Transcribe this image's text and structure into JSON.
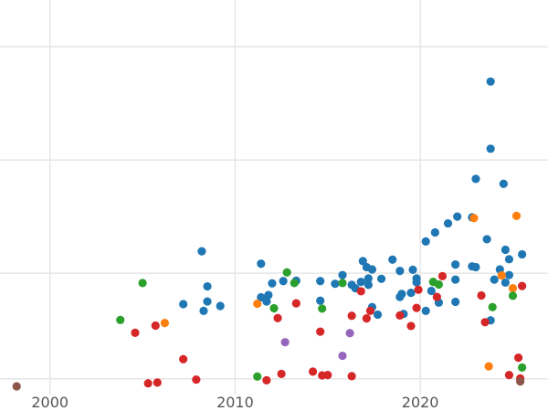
{
  "chart_data": {
    "type": "scatter",
    "title": "",
    "xlabel": "",
    "ylabel": "",
    "xlim": [
      1997.3,
      2026.9
    ],
    "ylim": [
      0,
      100
    ],
    "x_ticks": [
      2000,
      2010,
      2020
    ],
    "x_tick_labels": [
      "2000",
      "2010",
      "2020"
    ],
    "y_gridlines": [
      2,
      30,
      60,
      90
    ],
    "grid": true,
    "legend": "none",
    "series": [
      {
        "color": "#1f77b4",
        "points": [
          [
            2007.2,
            21.8
          ],
          [
            2008.2,
            35.8
          ],
          [
            2008.5,
            26.5
          ],
          [
            2008.3,
            20.0
          ],
          [
            2008.5,
            22.5
          ],
          [
            2009.2,
            21.3
          ],
          [
            2011.4,
            32.5
          ],
          [
            2011.4,
            23.6
          ],
          [
            2011.7,
            22.5
          ],
          [
            2011.8,
            24.2
          ],
          [
            2012.0,
            27.3
          ],
          [
            2012.6,
            27.9
          ],
          [
            2013.3,
            28.0
          ],
          [
            2014.6,
            27.9
          ],
          [
            2014.6,
            22.7
          ],
          [
            2015.4,
            27.2
          ],
          [
            2015.8,
            29.5
          ],
          [
            2016.3,
            26.9
          ],
          [
            2016.5,
            26.0
          ],
          [
            2016.8,
            27.7
          ],
          [
            2016.9,
            33.2
          ],
          [
            2017.1,
            31.6
          ],
          [
            2017.2,
            26.9
          ],
          [
            2017.2,
            28.6
          ],
          [
            2017.4,
            31.0
          ],
          [
            2017.4,
            21.0
          ],
          [
            2017.7,
            19.0
          ],
          [
            2017.9,
            28.5
          ],
          [
            2018.5,
            33.6
          ],
          [
            2018.9,
            30.6
          ],
          [
            2018.9,
            23.7
          ],
          [
            2019.0,
            24.5
          ],
          [
            2019.1,
            19.2
          ],
          [
            2019.5,
            24.8
          ],
          [
            2019.6,
            30.9
          ],
          [
            2019.8,
            28.6
          ],
          [
            2019.8,
            27.6
          ],
          [
            2020.3,
            38.4
          ],
          [
            2020.3,
            20.0
          ],
          [
            2020.6,
            25.3
          ],
          [
            2020.8,
            40.8
          ],
          [
            2021.0,
            22.2
          ],
          [
            2021.5,
            43.2
          ],
          [
            2021.9,
            32.3
          ],
          [
            2021.9,
            28.3
          ],
          [
            2021.9,
            22.4
          ],
          [
            2022.0,
            45.0
          ],
          [
            2022.8,
            31.8
          ],
          [
            2022.8,
            44.8
          ],
          [
            2023.0,
            31.6
          ],
          [
            2023.0,
            55.0
          ],
          [
            2023.6,
            39.0
          ],
          [
            2023.8,
            80.8
          ],
          [
            2023.8,
            63.0
          ],
          [
            2023.8,
            17.5
          ],
          [
            2024.0,
            28.3
          ],
          [
            2024.3,
            31.0
          ],
          [
            2024.5,
            53.7
          ],
          [
            2024.6,
            27.5
          ],
          [
            2024.6,
            36.2
          ],
          [
            2024.8,
            29.5
          ],
          [
            2024.8,
            33.7
          ],
          [
            2025.5,
            35.0
          ]
        ]
      },
      {
        "color": "#ff7f0e",
        "points": [
          [
            2006.2,
            16.8
          ],
          [
            2011.2,
            21.9
          ],
          [
            2022.9,
            44.6
          ],
          [
            2023.7,
            5.3
          ],
          [
            2024.4,
            29.4
          ],
          [
            2025.0,
            26.0
          ],
          [
            2025.2,
            45.2
          ]
        ]
      },
      {
        "color": "#2ca02c",
        "points": [
          [
            2003.8,
            17.6
          ],
          [
            2005.0,
            27.4
          ],
          [
            2011.2,
            2.6
          ],
          [
            2012.1,
            20.7
          ],
          [
            2012.8,
            30.2
          ],
          [
            2013.2,
            27.4
          ],
          [
            2014.7,
            20.6
          ],
          [
            2015.8,
            27.4
          ],
          [
            2020.7,
            27.7
          ],
          [
            2021.0,
            27.0
          ],
          [
            2023.9,
            21.0
          ],
          [
            2025.0,
            24.0
          ],
          [
            2025.5,
            5.0
          ]
        ]
      },
      {
        "color": "#d62728",
        "points": [
          [
            2004.6,
            14.2
          ],
          [
            2005.3,
            0.8
          ],
          [
            2005.7,
            16.1
          ],
          [
            2005.8,
            1.0
          ],
          [
            2007.2,
            7.2
          ],
          [
            2007.9,
            1.8
          ],
          [
            2011.7,
            1.6
          ],
          [
            2012.3,
            18.1
          ],
          [
            2012.5,
            3.3
          ],
          [
            2013.3,
            22.0
          ],
          [
            2014.2,
            3.9
          ],
          [
            2014.6,
            14.5
          ],
          [
            2014.7,
            2.9
          ],
          [
            2015.0,
            3.0
          ],
          [
            2016.3,
            18.7
          ],
          [
            2016.3,
            2.7
          ],
          [
            2016.8,
            25.2
          ],
          [
            2017.1,
            18.0
          ],
          [
            2017.3,
            20.0
          ],
          [
            2018.9,
            18.8
          ],
          [
            2019.5,
            16.0
          ],
          [
            2019.8,
            20.8
          ],
          [
            2019.9,
            25.6
          ],
          [
            2020.9,
            23.7
          ],
          [
            2021.2,
            29.2
          ],
          [
            2023.3,
            24.1
          ],
          [
            2023.5,
            17.0
          ],
          [
            2024.8,
            3.0
          ],
          [
            2025.3,
            7.6
          ],
          [
            2025.4,
            2.1
          ],
          [
            2025.5,
            26.6
          ]
        ]
      },
      {
        "color": "#9467bd",
        "points": [
          [
            2012.7,
            11.7
          ],
          [
            2015.8,
            8.1
          ],
          [
            2016.2,
            14.1
          ]
        ]
      },
      {
        "color": "#8c564b",
        "points": [
          [
            1998.2,
            0.0
          ],
          [
            2025.4,
            1.3
          ]
        ]
      }
    ]
  }
}
